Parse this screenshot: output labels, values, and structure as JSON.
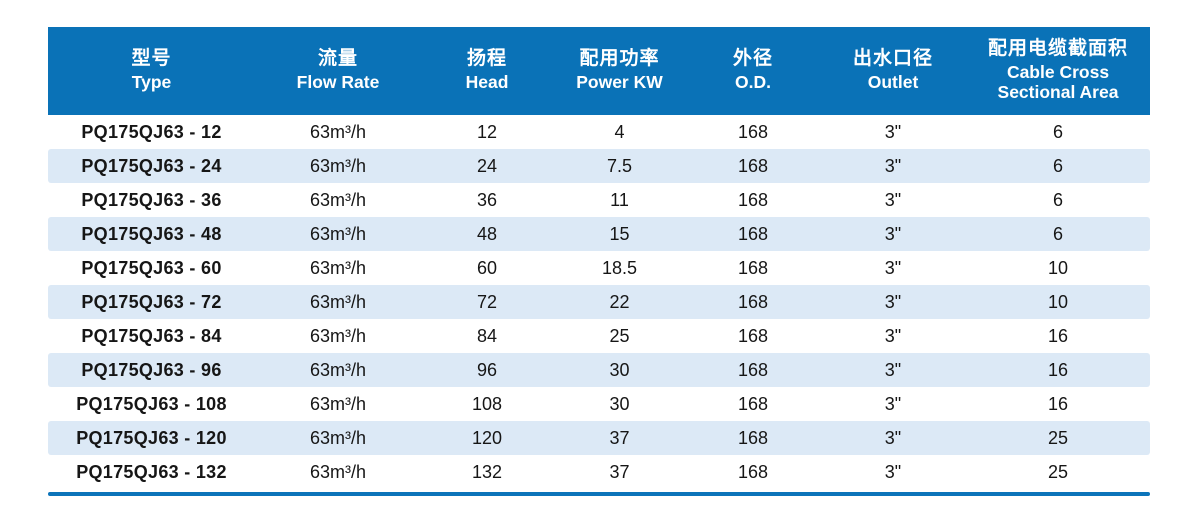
{
  "chart_data": {
    "type": "table",
    "columns": [
      {
        "zh": "型号",
        "en": "Type"
      },
      {
        "zh": "流量",
        "en": "Flow Rate"
      },
      {
        "zh": "扬程",
        "en": "Head"
      },
      {
        "zh": "配用功率",
        "en": "Power KW"
      },
      {
        "zh": "外径",
        "en": "O.D."
      },
      {
        "zh": "出水口径",
        "en": "Outlet"
      },
      {
        "zh": "配用电缆截面积",
        "en": "Cable Cross Sectional Area"
      }
    ],
    "rows": [
      [
        "PQ175QJ63 - 12",
        "63m³/h",
        "12",
        "4",
        "168",
        "3\"",
        "6"
      ],
      [
        "PQ175QJ63 - 24",
        "63m³/h",
        "24",
        "7.5",
        "168",
        "3\"",
        "6"
      ],
      [
        "PQ175QJ63 - 36",
        "63m³/h",
        "36",
        "11",
        "168",
        "3\"",
        "6"
      ],
      [
        "PQ175QJ63 - 48",
        "63m³/h",
        "48",
        "15",
        "168",
        "3\"",
        "6"
      ],
      [
        "PQ175QJ63 - 60",
        "63m³/h",
        "60",
        "18.5",
        "168",
        "3\"",
        "10"
      ],
      [
        "PQ175QJ63 - 72",
        "63m³/h",
        "72",
        "22",
        "168",
        "3\"",
        "10"
      ],
      [
        "PQ175QJ63 - 84",
        "63m³/h",
        "84",
        "25",
        "168",
        "3\"",
        "16"
      ],
      [
        "PQ175QJ63 - 96",
        "63m³/h",
        "96",
        "30",
        "168",
        "3\"",
        "16"
      ],
      [
        "PQ175QJ63 - 108",
        "63m³/h",
        "108",
        "30",
        "168",
        "3\"",
        "16"
      ],
      [
        "PQ175QJ63 - 120",
        "63m³/h",
        "120",
        "37",
        "168",
        "3\"",
        "25"
      ],
      [
        "PQ175QJ63 - 132",
        "63m³/h",
        "132",
        "37",
        "168",
        "3\"",
        "25"
      ]
    ]
  },
  "colors": {
    "header_bg": "#0a72b7",
    "header_text": "#ffffff",
    "stripe_bg": "#dce9f6",
    "bottom_rule": "#0c74ba",
    "row_text": "#161616"
  }
}
